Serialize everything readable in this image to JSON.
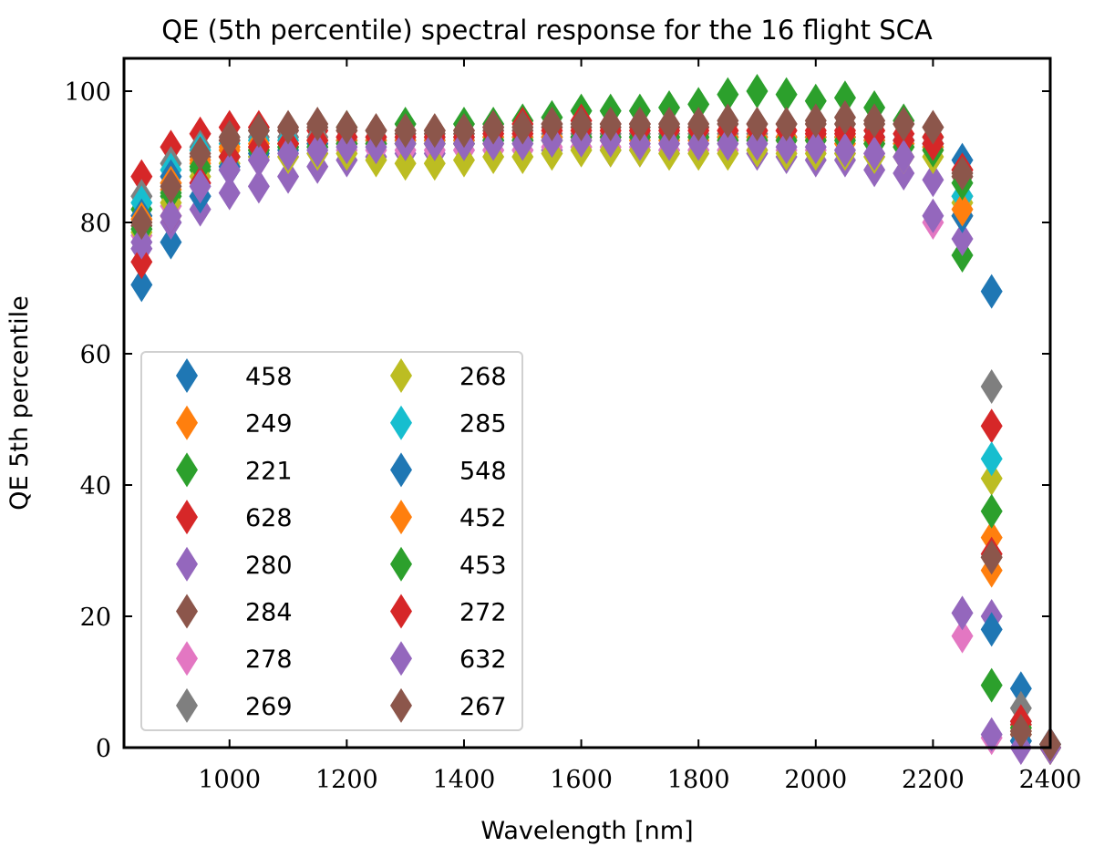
{
  "chart_data": {
    "type": "scatter",
    "title": "QE (5th percentile) spectral response for the 16 flight SCA",
    "xlabel": "Wavelength [nm]",
    "ylabel": "QE 5th percentile",
    "xlim": [
      820,
      2400
    ],
    "ylim": [
      0,
      105
    ],
    "xticks": [
      1000,
      1200,
      1400,
      1600,
      1800,
      2000,
      2200,
      2400
    ],
    "yticks": [
      0,
      20,
      40,
      60,
      80,
      100
    ],
    "grid": false,
    "marker": "thin-diamond",
    "legend_position": "center-left",
    "legend_columns": 2,
    "x": [
      850,
      900,
      950,
      1000,
      1050,
      1100,
      1150,
      1200,
      1250,
      1300,
      1350,
      1400,
      1450,
      1500,
      1550,
      1600,
      1650,
      1700,
      1750,
      1800,
      1850,
      1900,
      1950,
      2000,
      2050,
      2100,
      2150,
      2200,
      2250,
      2300,
      2350,
      2400
    ],
    "series": [
      {
        "name": "458",
        "color": "#1f77b4",
        "values": [
          70.5,
          77,
          84,
          88,
          90,
          91,
          91.5,
          92,
          92,
          92,
          92,
          92,
          92.5,
          92.5,
          92.5,
          93,
          93,
          93,
          93,
          93,
          93,
          93,
          93,
          93,
          93,
          92.5,
          92.5,
          92,
          89.5,
          69.5,
          9,
          0.5
        ]
      },
      {
        "name": "249",
        "color": "#ff7f0e",
        "values": [
          80,
          85,
          89,
          91,
          91.5,
          92,
          92,
          92,
          92,
          92,
          92,
          92,
          92,
          92.5,
          92.5,
          92.5,
          92.5,
          92.5,
          92.5,
          92.5,
          92.5,
          92.5,
          92.5,
          92.5,
          92,
          92,
          91.5,
          91,
          81,
          27,
          2,
          0
        ]
      },
      {
        "name": "221",
        "color": "#2ca02c",
        "values": [
          82,
          84,
          88,
          90,
          91,
          92,
          92.5,
          94.5,
          94,
          95,
          94,
          95,
          95,
          95.5,
          96,
          97,
          97,
          97,
          97.5,
          98,
          99.5,
          100,
          99.5,
          98.5,
          99,
          97.5,
          95.5,
          93,
          75,
          9.5,
          1,
          0
        ]
      },
      {
        "name": "628",
        "color": "#d62728",
        "values": [
          87,
          91.5,
          93.5,
          94.5,
          94.5,
          94,
          94,
          94,
          94,
          94,
          94,
          94,
          94.5,
          95,
          95,
          95.5,
          95,
          95,
          94.5,
          94.5,
          94,
          94,
          94,
          94,
          94,
          94,
          93.5,
          93,
          88,
          49,
          3.5,
          0
        ]
      },
      {
        "name": "280",
        "color": "#9467bd",
        "values": [
          76,
          80,
          82,
          84.5,
          85.5,
          87,
          88.5,
          89.5,
          90,
          90.5,
          90.5,
          91,
          91,
          91,
          91,
          91.5,
          91,
          91,
          91,
          91,
          91,
          90.5,
          90,
          89.5,
          89.5,
          88,
          87.5,
          86.5,
          77.5,
          20,
          1,
          0
        ]
      },
      {
        "name": "284",
        "color": "#8c564b",
        "values": [
          79.5,
          86,
          90,
          93,
          94,
          94,
          94.5,
          94,
          94,
          93.5,
          93.5,
          93.5,
          94,
          94,
          94.5,
          94.5,
          94.5,
          94.5,
          94.5,
          94.5,
          95,
          95,
          95,
          95,
          95,
          95,
          95,
          94.5,
          87,
          29,
          2,
          0
        ]
      },
      {
        "name": "278",
        "color": "#e377c2",
        "values": [
          78,
          82.5,
          86,
          88.5,
          89.5,
          90,
          90.5,
          91,
          91,
          91,
          91,
          91,
          91,
          91,
          91.5,
          91.5,
          91.5,
          91.5,
          91,
          91,
          91,
          91,
          91,
          91,
          90.5,
          90.5,
          90,
          80,
          17,
          1.5,
          0,
          0
        ]
      },
      {
        "name": "269",
        "color": "#7f7f7f",
        "values": [
          84,
          89,
          91.5,
          92.5,
          93,
          93,
          93,
          93,
          93,
          93,
          93,
          93,
          93,
          93,
          93.5,
          93.5,
          93.5,
          93.5,
          93.5,
          93.5,
          93.5,
          93.5,
          93,
          93,
          93,
          93,
          92.5,
          92,
          84,
          55,
          6,
          0
        ]
      },
      {
        "name": "268",
        "color": "#bcbd22",
        "values": [
          78.5,
          83,
          87,
          89,
          90,
          90,
          90.5,
          90.5,
          89.5,
          89,
          89,
          89.5,
          90,
          90,
          90.5,
          91,
          91,
          91,
          90.5,
          90.5,
          90.5,
          91,
          90.5,
          90.5,
          90.5,
          90,
          90,
          90,
          83,
          41,
          3,
          0
        ]
      },
      {
        "name": "285",
        "color": "#17becf",
        "values": [
          83,
          88,
          91,
          92,
          92.5,
          92.5,
          92.5,
          92.5,
          92.5,
          92.5,
          92.5,
          92.5,
          92.5,
          92.5,
          93,
          93,
          93,
          93,
          93,
          93,
          93,
          93,
          93,
          93,
          93,
          92.5,
          92,
          91.5,
          84,
          44,
          4,
          0
        ]
      },
      {
        "name": "548",
        "color": "#1f77b4",
        "values": [
          81,
          87,
          84,
          88.5,
          90.5,
          91.5,
          92,
          92.5,
          92.5,
          92.5,
          92.5,
          92.5,
          92.5,
          93,
          93,
          93,
          93,
          93,
          93,
          93,
          93,
          93,
          93,
          93,
          93,
          93,
          92.5,
          92,
          81,
          18,
          1,
          0.5
        ]
      },
      {
        "name": "452",
        "color": "#ff7f0e",
        "values": [
          80.5,
          86,
          89.5,
          91.5,
          92,
          92,
          92.5,
          92.5,
          92.5,
          92.5,
          92.5,
          92.5,
          93,
          93,
          93,
          93,
          93,
          93,
          93,
          93,
          93,
          93,
          93,
          93,
          93,
          92.5,
          92,
          91.5,
          82,
          32,
          2.5,
          0
        ]
      },
      {
        "name": "453",
        "color": "#2ca02c",
        "values": [
          79,
          84.5,
          88.5,
          90,
          91,
          91.5,
          91.5,
          92,
          92,
          92,
          92,
          92,
          92.5,
          92.5,
          92.5,
          93,
          93,
          93,
          93,
          93,
          92.5,
          92.5,
          92.5,
          92.5,
          92.5,
          92,
          91.5,
          91,
          86,
          36,
          3,
          0
        ]
      },
      {
        "name": "272",
        "color": "#d62728",
        "values": [
          74,
          81,
          86,
          90,
          91.5,
          92,
          92.5,
          93,
          93,
          93,
          93,
          93,
          93.5,
          93.5,
          94,
          94,
          94,
          94,
          94,
          94,
          94,
          94,
          94,
          93.5,
          93.5,
          93,
          92.5,
          92,
          88,
          29.5,
          4,
          0
        ]
      },
      {
        "name": "632",
        "color": "#9467bd",
        "values": [
          77,
          81,
          85.5,
          88,
          89.5,
          90.5,
          91,
          91.5,
          91.5,
          92,
          92,
          92,
          92,
          92,
          92.5,
          92.5,
          92.5,
          92,
          92,
          92,
          92,
          92,
          91.5,
          91.5,
          91,
          90.5,
          90,
          81,
          20.5,
          2,
          0,
          0
        ]
      },
      {
        "name": "267",
        "color": "#8c564b",
        "values": [
          80,
          85.5,
          90.5,
          92.5,
          94,
          94.5,
          95,
          94.5,
          94,
          94,
          94,
          94,
          94.5,
          94.5,
          95,
          95,
          95,
          95,
          95,
          95,
          95.5,
          95,
          95,
          95.5,
          96,
          95.5,
          95,
          94.5,
          87.5,
          29,
          2.5,
          0.5
        ]
      }
    ]
  }
}
